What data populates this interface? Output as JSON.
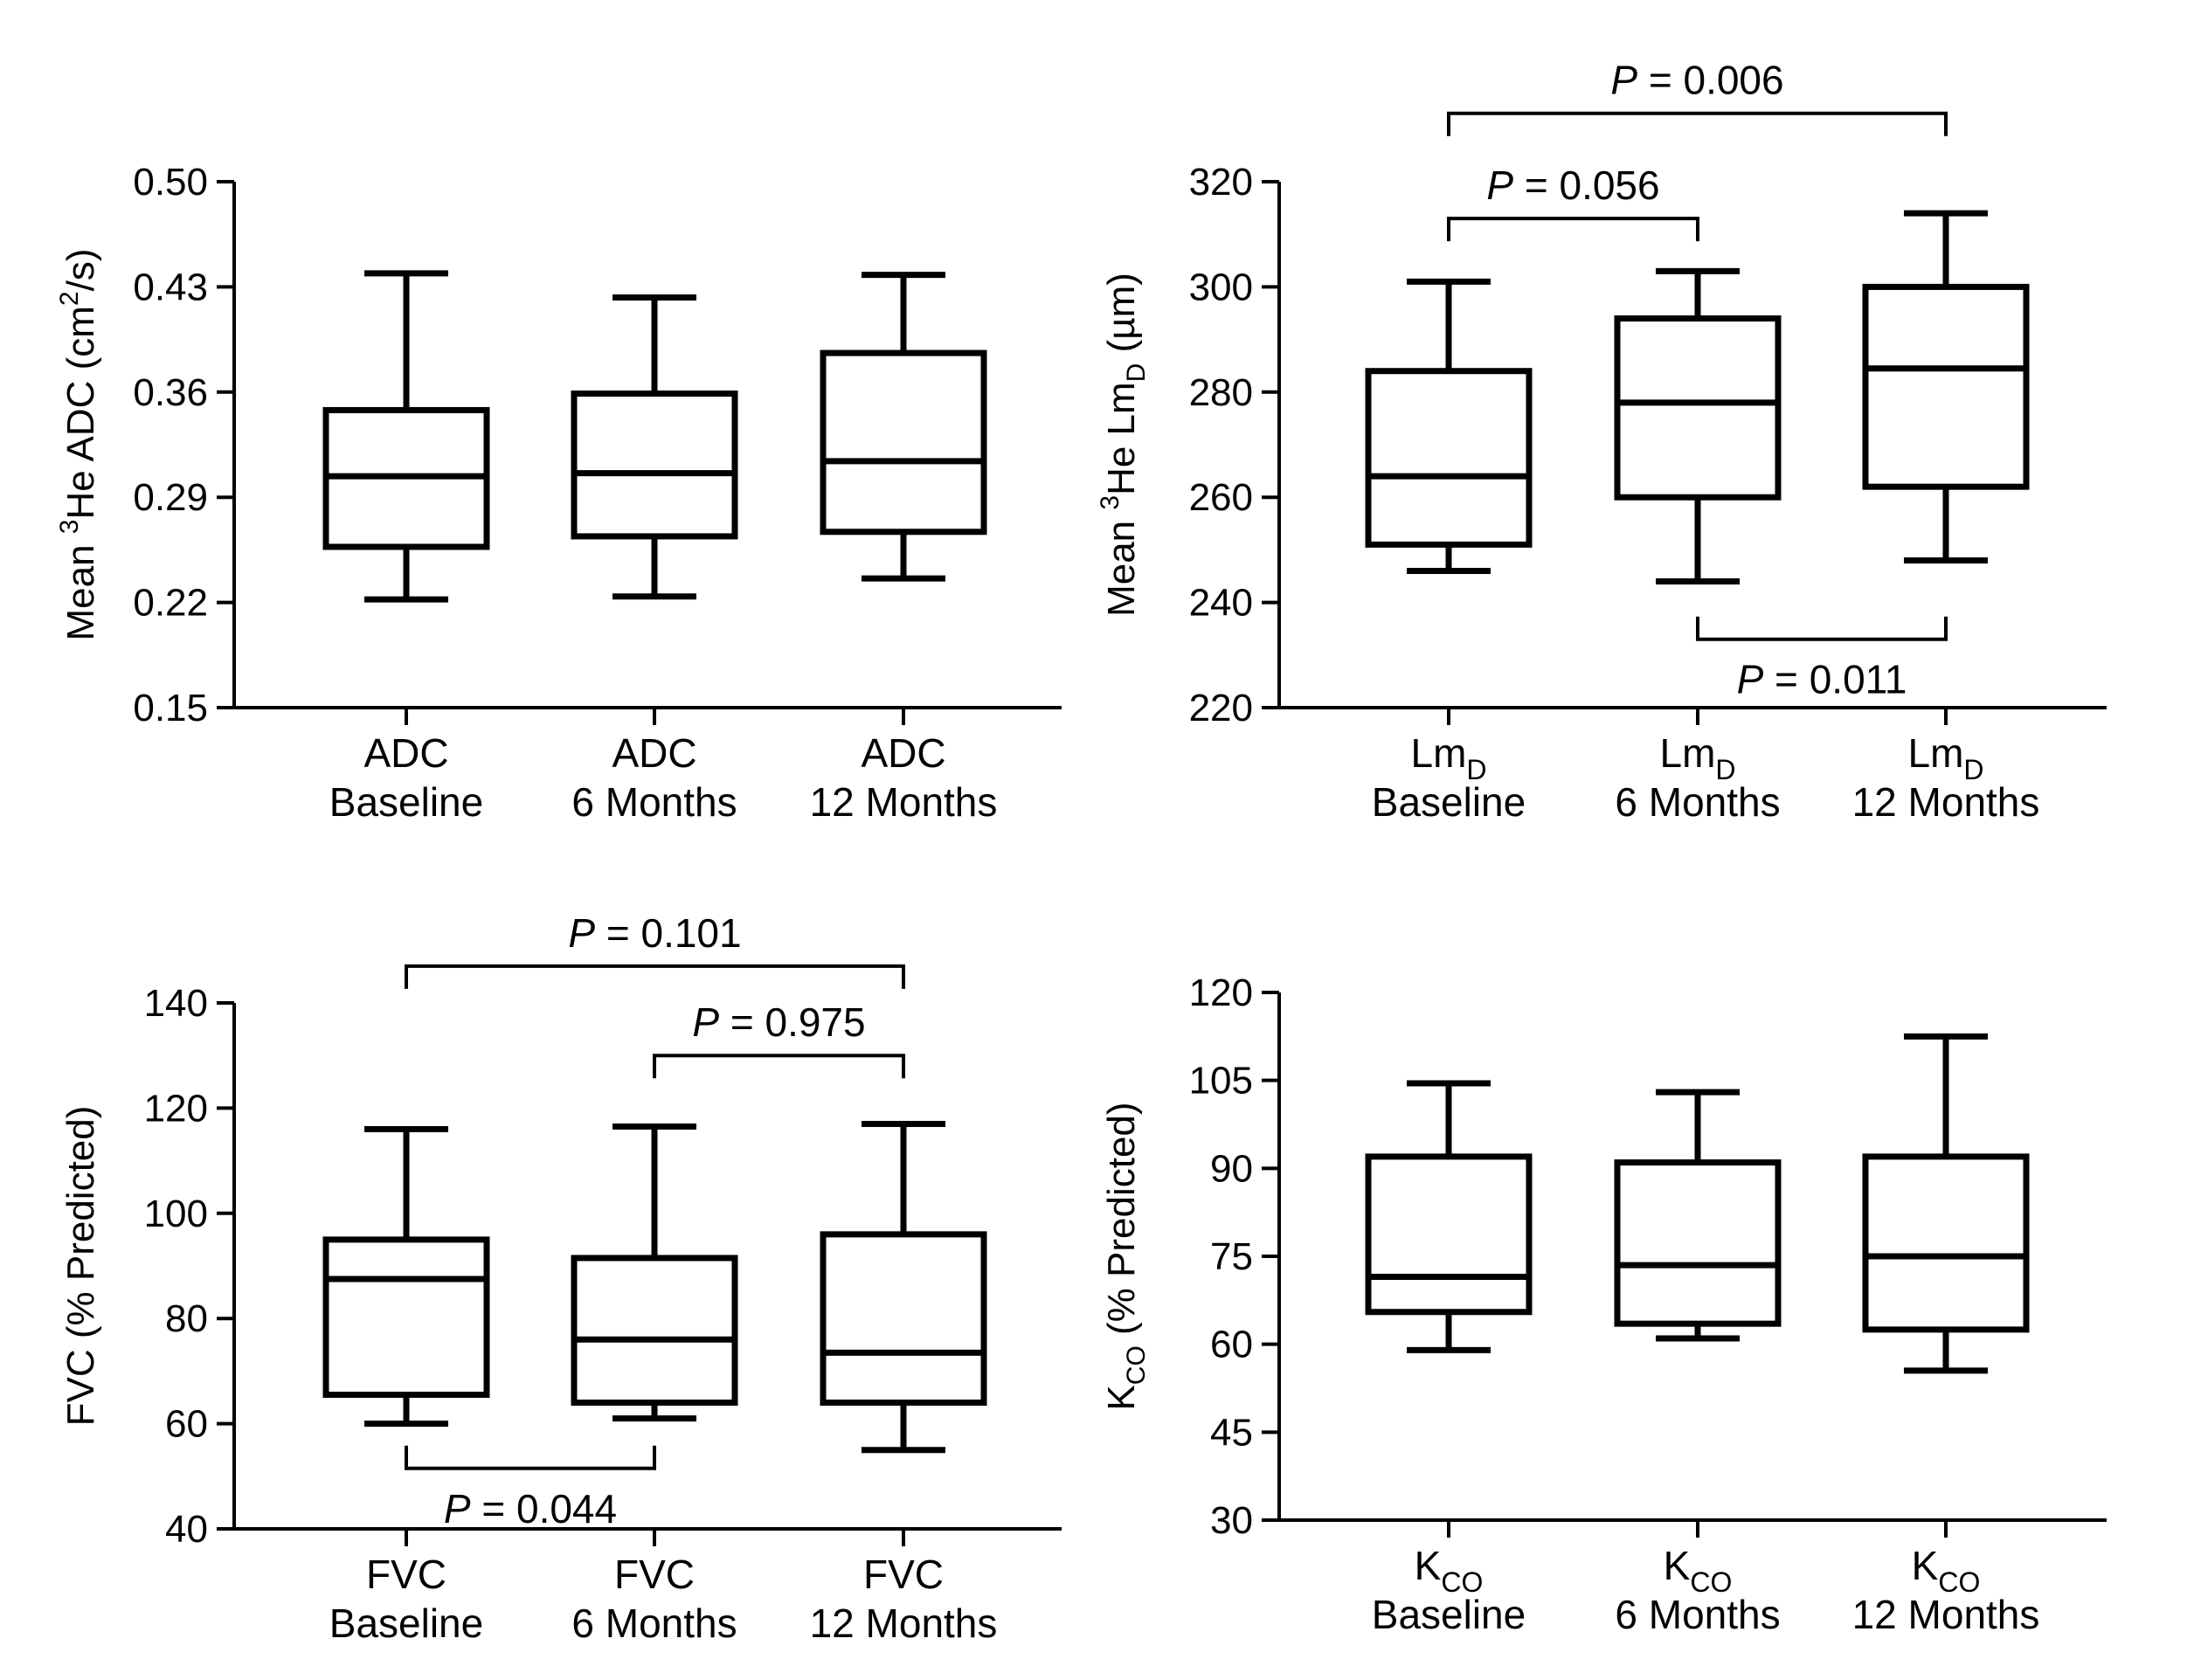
{
  "chart_data": [
    {
      "type": "box",
      "ylabel": "Mean 3He ADC (cm2/s)",
      "ylabel_parts": {
        "pre": "Mean ",
        "sup1": "3",
        "mid": "He ADC  (cm",
        "sup2": "2",
        "post": "/s)"
      },
      "ylim": [
        0.15,
        0.5
      ],
      "yticks": [
        0.15,
        0.22,
        0.29,
        0.36,
        0.43,
        0.5
      ],
      "yticks_text": [
        "0.15",
        "0.22",
        "0.29",
        "0.36",
        "0.43",
        "0.50"
      ],
      "categories": [
        {
          "line1": "ADC",
          "sub": "",
          "line2": "Baseline"
        },
        {
          "line1": "ADC",
          "sub": "",
          "line2": "6 Months"
        },
        {
          "line1": "ADC",
          "sub": "",
          "line2": "12 Months"
        }
      ],
      "boxes": [
        {
          "min": 0.222,
          "q1": 0.257,
          "median": 0.304,
          "q3": 0.348,
          "max": 0.439
        },
        {
          "min": 0.224,
          "q1": 0.264,
          "median": 0.306,
          "q3": 0.359,
          "max": 0.423
        },
        {
          "min": 0.236,
          "q1": 0.267,
          "median": 0.314,
          "q3": 0.386,
          "max": 0.438
        }
      ],
      "comparisons": []
    },
    {
      "type": "box",
      "ylabel": "Mean 3He LmD (µm)",
      "ylabel_parts": {
        "pre": "Mean ",
        "sup1": "3",
        "mid": "He Lm",
        "sub": "D",
        "post": " (µm)"
      },
      "ylim": [
        220,
        320
      ],
      "yticks": [
        220,
        240,
        260,
        280,
        300,
        320
      ],
      "yticks_text": [
        "220",
        "240",
        "260",
        "280",
        "300",
        "320"
      ],
      "categories": [
        {
          "line1": "Lm",
          "sub": "D",
          "line2": "Baseline"
        },
        {
          "line1": "Lm",
          "sub": "D",
          "line2": "6 Months"
        },
        {
          "line1": "Lm",
          "sub": "D",
          "line2": "12 Months"
        }
      ],
      "boxes": [
        {
          "min": 246,
          "q1": 251,
          "median": 264,
          "q3": 284,
          "max": 301
        },
        {
          "min": 244,
          "q1": 260,
          "median": 278,
          "q3": 294,
          "max": 303
        },
        {
          "min": 248,
          "q1": 262,
          "median": 284.5,
          "q3": 300,
          "max": 314
        }
      ],
      "comparisons": [
        {
          "from": 0,
          "to": 2,
          "p_prefix": "P",
          "p_value": " = 0.006",
          "y": 333,
          "side": "above"
        },
        {
          "from": 0,
          "to": 1,
          "p_prefix": "P",
          "p_value": " = 0.056",
          "y": 313,
          "side": "above"
        },
        {
          "from": 1,
          "to": 2,
          "p_prefix": "P",
          "p_value": " = 0.011",
          "y": 233,
          "side": "below"
        }
      ]
    },
    {
      "type": "box",
      "ylabel": "FVC (% Predicted)",
      "ylabel_parts": {
        "pre": "FVC (% Predicted)",
        "sup1": "",
        "mid": "",
        "sub": "",
        "post": ""
      },
      "ylim": [
        40,
        140
      ],
      "yticks": [
        40,
        60,
        80,
        100,
        120,
        140
      ],
      "yticks_text": [
        "40",
        "60",
        "80",
        "100",
        "120",
        "140"
      ],
      "categories": [
        {
          "line1": "FVC",
          "sub": "",
          "line2": "Baseline"
        },
        {
          "line1": "FVC",
          "sub": "",
          "line2": "6 Months"
        },
        {
          "line1": "FVC",
          "sub": "",
          "line2": "12 Months"
        }
      ],
      "boxes": [
        {
          "min": 60,
          "q1": 65.5,
          "median": 87.5,
          "q3": 95,
          "max": 116
        },
        {
          "min": 61,
          "q1": 64,
          "median": 76,
          "q3": 91.5,
          "max": 116.5
        },
        {
          "min": 55,
          "q1": 64,
          "median": 73.5,
          "q3": 96,
          "max": 117
        }
      ],
      "comparisons": [
        {
          "from": 0,
          "to": 2,
          "p_prefix": "P",
          "p_value": " = 0.101",
          "y": 147,
          "side": "above"
        },
        {
          "from": 1,
          "to": 2,
          "p_prefix": "P",
          "p_value": " = 0.975",
          "y": 130,
          "side": "above"
        },
        {
          "from": 0,
          "to": 1,
          "p_prefix": "P",
          "p_value": " = 0.044",
          "y": 51.5,
          "side": "below"
        }
      ]
    },
    {
      "type": "box",
      "ylabel": "KCO (% Predicted)",
      "ylabel_parts": {
        "pre": "K",
        "sup1": "",
        "mid": "",
        "sub": "CO",
        "post": " (% Predicted)"
      },
      "ylim": [
        30,
        120
      ],
      "yticks": [
        30,
        45,
        60,
        75,
        90,
        105,
        120
      ],
      "yticks_text": [
        "30",
        "45",
        "60",
        "75",
        "90",
        "105",
        "120"
      ],
      "categories": [
        {
          "line1": "K",
          "sub": "CO",
          "line2": "Baseline"
        },
        {
          "line1": "K",
          "sub": "CO",
          "line2": "6 Months"
        },
        {
          "line1": "K",
          "sub": "CO",
          "line2": "12 Months"
        }
      ],
      "boxes": [
        {
          "min": 59,
          "q1": 65.5,
          "median": 71.5,
          "q3": 92,
          "max": 104.5
        },
        {
          "min": 61,
          "q1": 63.5,
          "median": 73.5,
          "q3": 91,
          "max": 103
        },
        {
          "min": 55.5,
          "q1": 62.5,
          "median": 75,
          "q3": 92,
          "max": 112.5
        }
      ],
      "comparisons": []
    }
  ]
}
